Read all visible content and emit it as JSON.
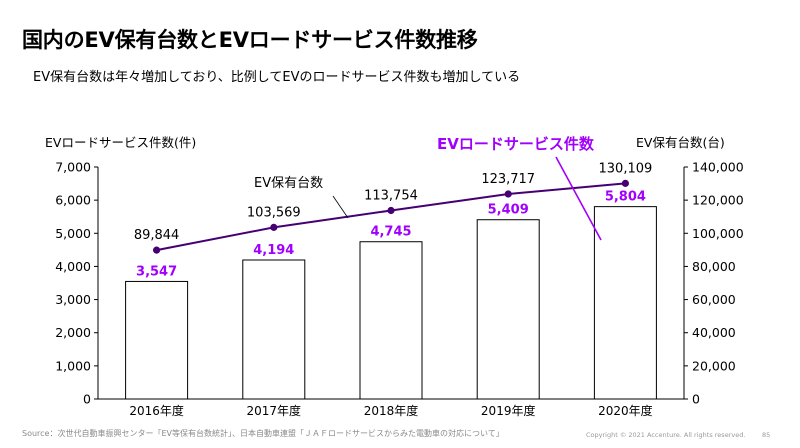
{
  "title": "国内のEV保有台数とEVロードサービス件数推移",
  "subtitle": "EV保有台数は年々増加しており、比例してEVのロードサービス件数も増加している",
  "colors": {
    "bar_fill": "#ffffff",
    "bar_stroke": "#000000",
    "bar_label": "#a100ff",
    "line": "#460073",
    "callout": "#a100ff"
  },
  "chart_data": {
    "type": "bar+line",
    "categories": [
      "2016年度",
      "2017年度",
      "2018年度",
      "2019年度",
      "2020年度"
    ],
    "series": [
      {
        "name": "EVロードサービス件数",
        "type": "bar",
        "axis": "left",
        "values": [
          3547,
          4194,
          4745,
          5409,
          5804
        ],
        "labels": [
          "3,547",
          "4,194",
          "4,745",
          "5,409",
          "5,804"
        ]
      },
      {
        "name": "EV保有台数",
        "type": "line",
        "axis": "right",
        "values": [
          89844,
          103569,
          113754,
          123717,
          130109
        ],
        "labels": [
          "89,844",
          "103,569",
          "113,754",
          "123,717",
          "130,109"
        ]
      }
    ],
    "left_axis": {
      "label": "EVロードサービス件数(件)",
      "ylim": [
        0,
        7000
      ],
      "ticks": [
        "0",
        "1,000",
        "2,000",
        "3,000",
        "4,000",
        "5,000",
        "6,000",
        "7,000"
      ]
    },
    "right_axis": {
      "label": "EV保有台数(台)",
      "ylim": [
        0,
        140000
      ],
      "ticks": [
        "0",
        "20,000",
        "40,000",
        "60,000",
        "80,000",
        "100,000",
        "120,000",
        "140,000"
      ]
    },
    "annotations": {
      "line_series_label": "EV保有台数",
      "bar_series_callout": "EVロードサービス件数"
    }
  },
  "footer": {
    "source": "Source：次世代自動車振興センター「EV等保有台数統計」、日本自動車連盟「ＪＡＦロードサービスからみた電動車の対応について」",
    "copyright": "Copyright © 2021 Accenture. All rights reserved.",
    "page": "85"
  }
}
